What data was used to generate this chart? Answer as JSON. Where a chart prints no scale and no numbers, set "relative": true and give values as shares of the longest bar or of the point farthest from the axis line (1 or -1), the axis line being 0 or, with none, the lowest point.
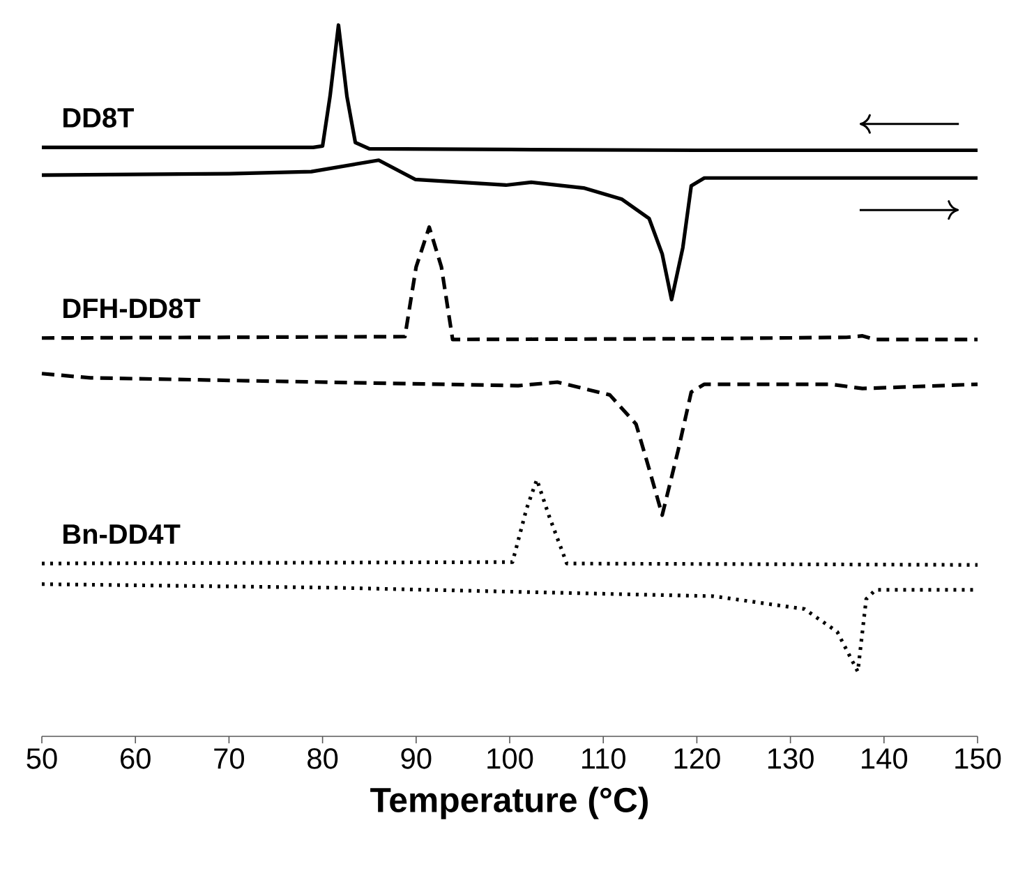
{
  "chart_data": {
    "type": "line",
    "relative": true,
    "xlabel": "Temperature (°C)",
    "xlim": [
      50,
      150
    ],
    "xticks": [
      50,
      60,
      70,
      80,
      90,
      100,
      110,
      120,
      130,
      140,
      150
    ],
    "series": [
      {
        "name": "DD8T",
        "color": "#000000",
        "line_style": "solid",
        "x": [
          50,
          70,
          79,
          80,
          80.8,
          81.7,
          82.6,
          83.5,
          85,
          100,
          120,
          150
        ],
        "values": [
          0.828,
          0.828,
          0.828,
          0.83,
          0.9,
          1.0,
          0.9,
          0.835,
          0.826,
          0.825,
          0.824,
          0.824
        ]
      },
      {
        "color": "#000000",
        "line_style": "solid",
        "x": [
          50,
          70,
          78.8,
          86,
          89.9,
          99.6,
          102.3,
          107.9,
          112,
          114.9,
          116.3,
          117.3,
          118.5,
          119.4,
          120.8,
          150
        ],
        "values": [
          0.789,
          0.791,
          0.794,
          0.81,
          0.783,
          0.775,
          0.779,
          0.771,
          0.755,
          0.728,
          0.678,
          0.614,
          0.687,
          0.774,
          0.785,
          0.785
        ]
      },
      {
        "name": "DFH-DD8T",
        "color": "#000000",
        "line_style": "dashed",
        "x": [
          50,
          88.8,
          90,
          91.4,
          92.7,
          93.9,
          120,
          136,
          137.7,
          139,
          150
        ],
        "values": [
          0.56,
          0.562,
          0.66,
          0.716,
          0.66,
          0.558,
          0.559,
          0.561,
          0.563,
          0.558,
          0.558
        ]
      },
      {
        "color": "#000000",
        "line_style": "dashed",
        "x": [
          50,
          55.2,
          100.9,
          105.1,
          110.7,
          113.5,
          114.9,
          116.3,
          118,
          119.4,
          120.8,
          134.3,
          137.7,
          150
        ],
        "values": [
          0.51,
          0.504,
          0.493,
          0.498,
          0.48,
          0.439,
          0.376,
          0.311,
          0.402,
          0.484,
          0.495,
          0.495,
          0.489,
          0.495
        ]
      },
      {
        "name": "Bn-DD4T",
        "color": "#000000",
        "line_style": "dotted",
        "x": [
          50,
          100.3,
          101.8,
          102.9,
          104.2,
          106.1,
          150
        ],
        "values": [
          0.243,
          0.245,
          0.32,
          0.361,
          0.31,
          0.243,
          0.241
        ]
      },
      {
        "color": "#000000",
        "line_style": "dotted",
        "x": [
          50,
          81,
          121.8,
          131.5,
          135,
          137.2,
          138.1,
          139.1,
          150
        ],
        "values": [
          0.214,
          0.209,
          0.197,
          0.179,
          0.147,
          0.091,
          0.193,
          0.206,
          0.206
        ]
      }
    ]
  }
}
